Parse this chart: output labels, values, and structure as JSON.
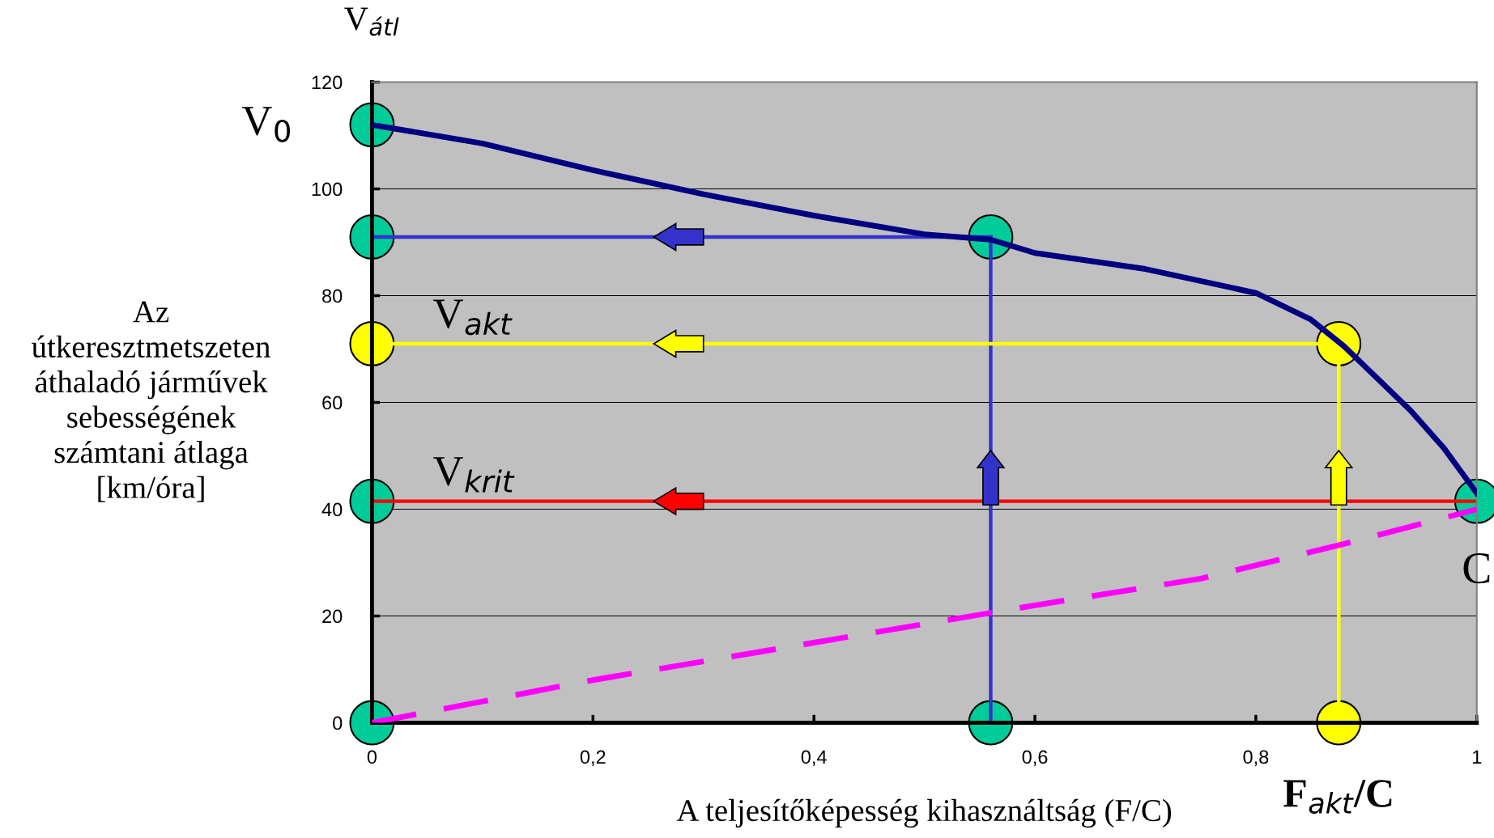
{
  "chart_data": {
    "type": "line",
    "xlabel": "A teljesítőképesség kihasználtság (F/C)",
    "ylabel": "Az\nútkeresztmetszeten\náthaladó járművek\nsebességének\nszámtani átlaga\n[km/óra]",
    "xlim": [
      0,
      1
    ],
    "ylim": [
      0,
      120
    ],
    "xticks": [
      0,
      {
        "value": 0.2,
        "label": "0,2"
      },
      {
        "value": 0.4,
        "label": "0,4"
      },
      {
        "value": 0.6,
        "label": "0,6"
      },
      {
        "value": 0.8,
        "label": "0,8"
      },
      1
    ],
    "yticks": [
      0,
      20,
      40,
      60,
      80,
      100,
      120
    ],
    "grid": "y",
    "series": [
      {
        "color": "#000080",
        "x": [
          0,
          0.1,
          0.2,
          0.3,
          0.4,
          0.5,
          0.56,
          0.6,
          0.7,
          0.8,
          0.85,
          0.88,
          0.94,
          0.97,
          1
        ],
        "values": [
          112,
          108.5,
          103.5,
          99,
          95,
          91.5,
          90.5,
          88,
          85,
          80.5,
          75.5,
          70.5,
          58.5,
          51.5,
          43
        ]
      },
      {
        "color": "#ff00ff",
        "line_style": "dashed",
        "x": [
          0,
          0.2,
          0.4,
          0.6,
          0.75,
          0.88,
          1
        ],
        "values": [
          0,
          8,
          15,
          22,
          27,
          33.5,
          40
        ]
      },
      {
        "color": "#3333cc",
        "x": [
          0,
          0.56
        ],
        "values": [
          91,
          91
        ]
      },
      {
        "color": "#3333cc",
        "x": [
          0.56,
          0.56
        ],
        "values": [
          0,
          91
        ]
      },
      {
        "color": "#ffff00",
        "x": [
          0,
          0.875
        ],
        "values": [
          71,
          71
        ]
      },
      {
        "color": "#ffff00",
        "x": [
          0.875,
          0.875
        ],
        "values": [
          0,
          71
        ]
      },
      {
        "color": "#ff0000",
        "x": [
          0,
          1
        ],
        "values": [
          41.5,
          41.5
        ]
      },
      {
        "type": "scatter",
        "marker": "circle",
        "x": [
          0,
          0,
          0,
          0,
          0.56,
          0.56,
          1,
          0,
          0.875,
          0.875
        ],
        "values": [
          112,
          91,
          41.5,
          0,
          91,
          0,
          41.5,
          71,
          71,
          0
        ],
        "colors": [
          "#00cc99",
          "#00cc99",
          "#00cc99",
          "#00cc99",
          "#00cc99",
          "#00cc99",
          "#00cc99",
          "#ffff00",
          "#ffff00",
          "#ffff00"
        ]
      }
    ],
    "annotations": [
      "V$_{átl}$",
      {
        "text": "V$_{0}$",
        "x": 0,
        "y": 112
      },
      {
        "text": "V$_{akt}$",
        "x": 0.055,
        "y": 71
      },
      {
        "text": "V$_{krit}$",
        "x": 0.055,
        "y": 41.5
      },
      {
        "text": "C",
        "x": 1,
        "y": 41.5
      },
      {
        "text": "F$_{akt}$/C",
        "x": 0.875,
        "y": 0
      }
    ]
  }
}
